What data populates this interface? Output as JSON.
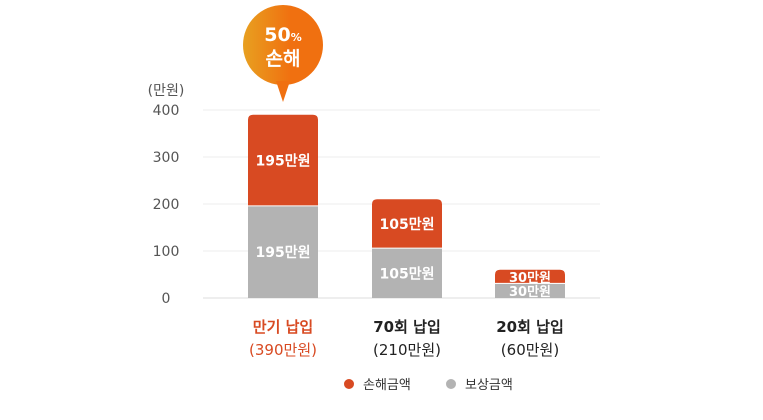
{
  "chart_data": {
    "type": "bar",
    "stacked": true,
    "y_unit_label": "(만원)",
    "ylim": [
      0,
      400
    ],
    "yticks": [
      "0",
      "100",
      "200",
      "300",
      "400"
    ],
    "grid": true,
    "categories": [
      {
        "name": "만기 납입",
        "total": "(390만원)",
        "highlight": true
      },
      {
        "name": "70회 납입",
        "total": "(210만원)",
        "highlight": false
      },
      {
        "name": "20회 납입",
        "total": "(60만원)",
        "highlight": false
      }
    ],
    "series": [
      {
        "name": "보상금액",
        "color": "#b3b3b3",
        "values": [
          195,
          105,
          30
        ],
        "labels": [
          "195만원",
          "105만원",
          "30만원"
        ]
      },
      {
        "name": "손해금액",
        "color": "#d84a22",
        "values": [
          195,
          105,
          30
        ],
        "labels": [
          "195만원",
          "105만원",
          "30만원"
        ]
      }
    ],
    "legend_placement": "bottom",
    "callout": {
      "line1": "50",
      "unit": "%",
      "line2": "손해",
      "color": "#f07010"
    }
  }
}
